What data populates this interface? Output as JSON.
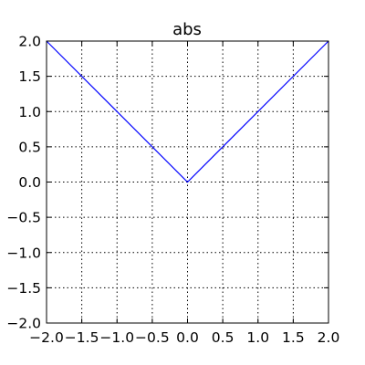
{
  "chart_data": {
    "type": "line",
    "title": "abs",
    "xlabel": "",
    "ylabel": "",
    "xlim": [
      -2.0,
      2.0
    ],
    "ylim": [
      -2.0,
      2.0
    ],
    "grid": true,
    "x_ticks": [
      -2.0,
      -1.5,
      -1.0,
      -0.5,
      0.0,
      0.5,
      1.0,
      1.5,
      2.0
    ],
    "y_ticks": [
      -2.0,
      -1.5,
      -1.0,
      -0.5,
      0.0,
      0.5,
      1.0,
      1.5,
      2.0
    ],
    "x_tick_labels": [
      "−2.0",
      "−1.5",
      "−1.0",
      "−0.5",
      "0.0",
      "0.5",
      "1.0",
      "1.5",
      "2.0"
    ],
    "y_tick_labels": [
      "−2.0",
      "−1.5",
      "−1.0",
      "−0.5",
      "0.0",
      "0.5",
      "1.0",
      "1.5",
      "2.0"
    ],
    "series": [
      {
        "name": "abs",
        "color": "#0000ff",
        "x": [
          -2.0,
          0.0,
          2.0
        ],
        "y": [
          2.0,
          0.0,
          2.0
        ]
      }
    ]
  }
}
